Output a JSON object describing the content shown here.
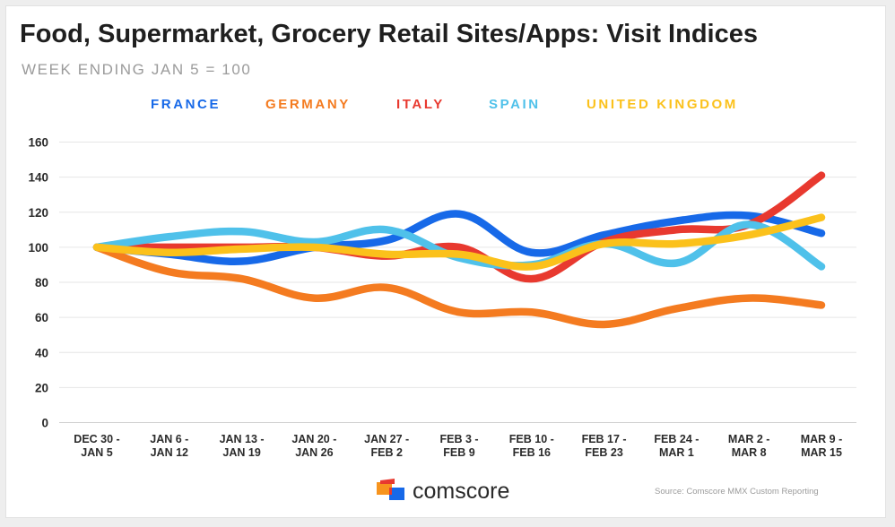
{
  "chart_data": {
    "type": "line",
    "title": "Food, Supermarket, Grocery Retail Sites/Apps: Visit Indices",
    "subtitle": "WEEK ENDING JAN 5 = 100",
    "xlabel": "",
    "ylabel": "",
    "ylim": [
      0,
      160
    ],
    "yticks": [
      0,
      20,
      40,
      60,
      80,
      100,
      120,
      140,
      160
    ],
    "grid": true,
    "legend_position": "top",
    "categories": [
      [
        "DEC 30 -",
        "JAN 5"
      ],
      [
        "JAN 6 -",
        "JAN 12"
      ],
      [
        "JAN 13 -",
        "JAN 19"
      ],
      [
        "JAN 20 -",
        "JAN 26"
      ],
      [
        "JAN 27 -",
        "FEB 2"
      ],
      [
        "FEB 3 -",
        "FEB 9"
      ],
      [
        "FEB 10 -",
        "FEB 16"
      ],
      [
        "FEB 17 -",
        "FEB 23"
      ],
      [
        "FEB 24 -",
        "MAR 1"
      ],
      [
        "MAR 2 -",
        "MAR 8"
      ],
      [
        "MAR 9 -",
        "MAR 15"
      ]
    ],
    "series": [
      {
        "name": "FRANCE",
        "color": "#1769e8",
        "values": [
          100,
          96,
          92,
          100,
          104,
          119,
          97,
          107,
          115,
          118,
          108
        ]
      },
      {
        "name": "GERMANY",
        "color": "#f47b20",
        "values": [
          100,
          86,
          82,
          71,
          77,
          63,
          63,
          56,
          65,
          71,
          67
        ]
      },
      {
        "name": "ITALY",
        "color": "#e8392f",
        "values": [
          100,
          100,
          100,
          100,
          95,
          100,
          82,
          103,
          110,
          113,
          141
        ]
      },
      {
        "name": "SPAIN",
        "color": "#4fc1ea",
        "values": [
          100,
          106,
          109,
          103,
          110,
          94,
          90,
          102,
          91,
          113,
          89
        ]
      },
      {
        "name": "UNITED KINGDOM",
        "color": "#fbc11b",
        "values": [
          100,
          97,
          99,
          100,
          96,
          96,
          89,
          102,
          102,
          107,
          117
        ]
      }
    ]
  },
  "brand": {
    "name": "comscore",
    "colors": {
      "orange": "#f7941e",
      "red": "#e8392f",
      "blue": "#1769e8"
    }
  },
  "source": "Source: Comscore MMX Custom Reporting"
}
